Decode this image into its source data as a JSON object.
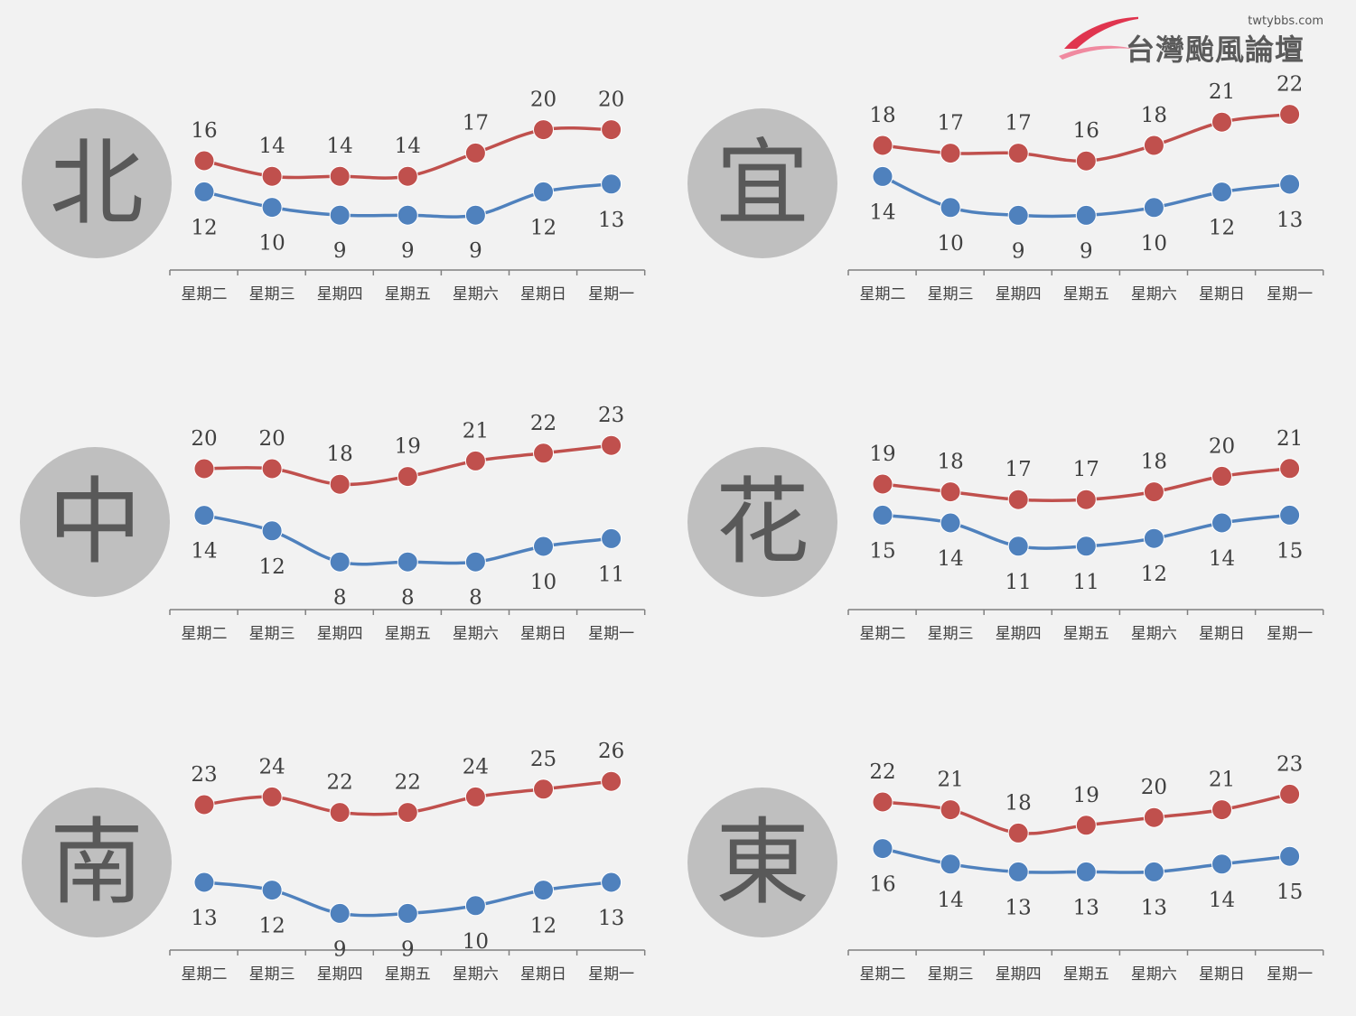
{
  "logo": {
    "site": "twtybbs.com",
    "name": "台灣颱風論壇"
  },
  "colors": {
    "high": "#c0504d",
    "low": "#4f81bd",
    "axis": "#808080",
    "text": "#404040"
  },
  "chart_data": [
    {
      "type": "line",
      "region": "北",
      "categories": [
        "星期二",
        "星期三",
        "星期四",
        "星期五",
        "星期六",
        "星期日",
        "星期一"
      ],
      "series": [
        {
          "values": [
            16,
            14,
            14,
            14,
            17,
            20,
            20
          ]
        },
        {
          "values": [
            12,
            10,
            9,
            9,
            9,
            12,
            13
          ]
        }
      ]
    },
    {
      "type": "line",
      "region": "宜",
      "categories": [
        "星期二",
        "星期三",
        "星期四",
        "星期五",
        "星期六",
        "星期日",
        "星期一"
      ],
      "series": [
        {
          "values": [
            18,
            17,
            17,
            16,
            18,
            21,
            22
          ]
        },
        {
          "values": [
            14,
            10,
            9,
            9,
            10,
            12,
            13
          ]
        }
      ]
    },
    {
      "type": "line",
      "region": "中",
      "categories": [
        "星期二",
        "星期三",
        "星期四",
        "星期五",
        "星期六",
        "星期日",
        "星期一"
      ],
      "series": [
        {
          "values": [
            20,
            20,
            18,
            19,
            21,
            22,
            23
          ]
        },
        {
          "values": [
            14,
            12,
            8,
            8,
            8,
            10,
            11
          ]
        }
      ]
    },
    {
      "type": "line",
      "region": "花",
      "categories": [
        "星期二",
        "星期三",
        "星期四",
        "星期五",
        "星期六",
        "星期日",
        "星期一"
      ],
      "series": [
        {
          "values": [
            19,
            18,
            17,
            17,
            18,
            20,
            21
          ]
        },
        {
          "values": [
            15,
            14,
            11,
            11,
            12,
            14,
            15
          ]
        }
      ]
    },
    {
      "type": "line",
      "region": "南",
      "categories": [
        "星期二",
        "星期三",
        "星期四",
        "星期五",
        "星期六",
        "星期日",
        "星期一"
      ],
      "series": [
        {
          "values": [
            23,
            24,
            22,
            22,
            24,
            25,
            26
          ]
        },
        {
          "values": [
            13,
            12,
            9,
            9,
            10,
            12,
            13
          ]
        }
      ]
    },
    {
      "type": "line",
      "region": "東",
      "categories": [
        "星期二",
        "星期三",
        "星期四",
        "星期五",
        "星期六",
        "星期日",
        "星期一"
      ],
      "series": [
        {
          "values": [
            22,
            21,
            18,
            19,
            20,
            21,
            23
          ]
        },
        {
          "values": [
            16,
            14,
            13,
            13,
            13,
            14,
            15
          ]
        }
      ]
    }
  ]
}
